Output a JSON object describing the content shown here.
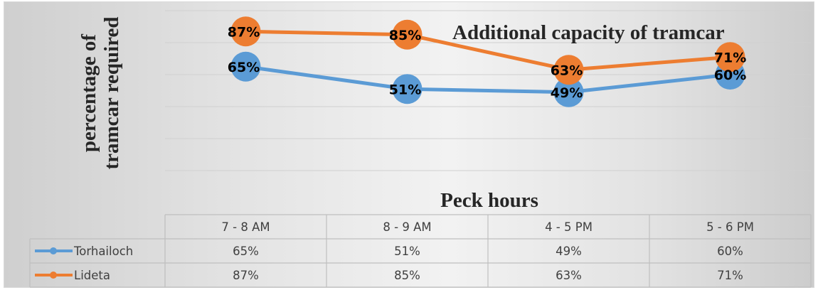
{
  "chart_data": {
    "type": "line",
    "title": "Additional capacity of tramcar",
    "xlabel": "Peck hours",
    "ylabel": [
      "percentage of",
      "tramcar required"
    ],
    "categories": [
      "7 - 8 AM",
      "8 - 9 AM",
      "4 - 5 PM",
      "5 - 6 PM"
    ],
    "series": [
      {
        "name": "Torhailoch",
        "values": [
          65,
          51,
          49,
          60
        ],
        "labels": [
          "65%",
          "51%",
          "49%",
          "60%"
        ],
        "color": "#5b9bd5"
      },
      {
        "name": "Lideta",
        "values": [
          87,
          85,
          63,
          71
        ],
        "labels": [
          "87%",
          "85%",
          "63%",
          "71%"
        ],
        "color": "#ed7d31"
      }
    ],
    "ylim": [
      0,
      100
    ],
    "grid": true,
    "legend": "data-table"
  }
}
